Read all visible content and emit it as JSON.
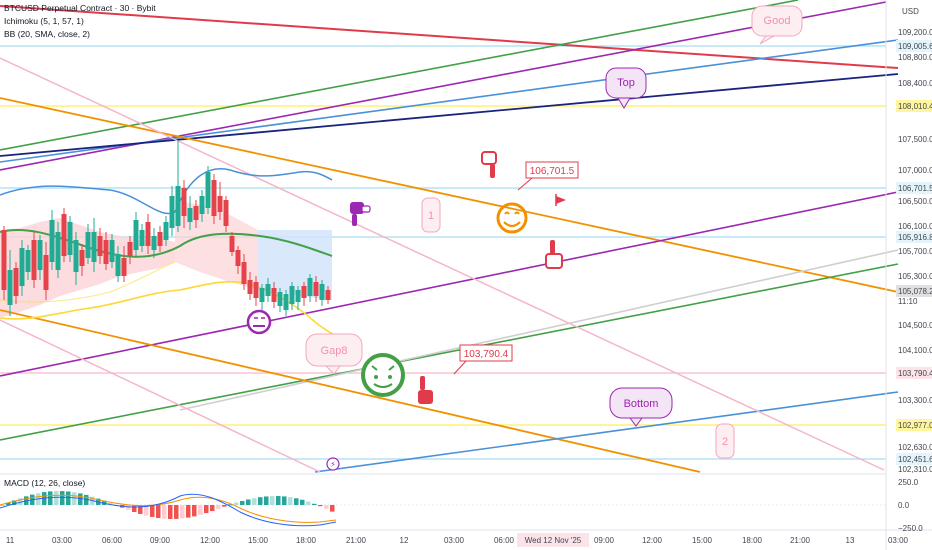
{
  "header": {
    "symbol_line": "BTCUSD Perpetual Contract · 30 · Bybit",
    "indicators": [
      "Ichimoku (5, 1, 57, 1)",
      "BB (20, SMA, close, 2)"
    ]
  },
  "price_axis": {
    "currency": "USD",
    "ticks": [
      "109,200.0",
      "108,800.0",
      "108,400.0",
      "107,500.0",
      "107,000.0",
      "106,500.0",
      "106,100.0",
      "105,700.0",
      "105,300.0",
      "104,500.0",
      "104,100.0",
      "103,300.0",
      "102,630.0",
      "102,310.0"
    ],
    "levels": [
      {
        "label": "109,005.6",
        "color": "#e3f4fb",
        "text": "#131722"
      },
      {
        "label": "108,010.4",
        "color": "#fff59d",
        "text": "#131722"
      },
      {
        "label": "106,701.5",
        "color": "#e3f4fb",
        "text": "#131722"
      },
      {
        "label": "105,916.8",
        "color": "#e3f4fb",
        "text": "#131722"
      },
      {
        "label": "105,078.2",
        "color": "#e0e0e0",
        "text": "#131722"
      },
      {
        "label": "103,790.4",
        "color": "#fbe3e8",
        "text": "#131722"
      },
      {
        "label": "102,977.0",
        "color": "#fff59d",
        "text": "#131722"
      },
      {
        "label": "102,451.6",
        "color": "#e3f4fb",
        "text": "#131722"
      }
    ],
    "countdown": "11:10"
  },
  "time_axis": {
    "labels": [
      "11",
      "03:00",
      "06:00",
      "09:00",
      "12:00",
      "15:00",
      "18:00",
      "21:00",
      "12",
      "03:00",
      "06:00",
      "Wed 12 Nov '25",
      "09:00",
      "12:00",
      "15:00",
      "18:00",
      "21:00",
      "13",
      "03:00"
    ],
    "highlight": "Wed 12 Nov '25"
  },
  "macd": {
    "label": "MACD (12, 26, close)",
    "ticks": [
      "250.0",
      "0.0",
      "−250.0"
    ]
  },
  "annotations": {
    "good": "Good",
    "top": "Top",
    "bottom": "Bottom",
    "gap": "Gap8",
    "wave1": "1",
    "wave2": "2",
    "callout_high": "106,701.5",
    "callout_low": "103,790.4",
    "lightning": "⚡"
  },
  "colors": {
    "red_line": "#e03b4a",
    "green_line": "#43a047",
    "purple_line": "#9c27b0",
    "blue_line": "#4a90d9",
    "navy_line": "#1a237e",
    "orange_line": "#f29100",
    "pink_line": "#f4b6c8",
    "grey_line": "#cfcfcf",
    "up_candle": "#22ab94",
    "down_candle": "#e5434b"
  }
}
